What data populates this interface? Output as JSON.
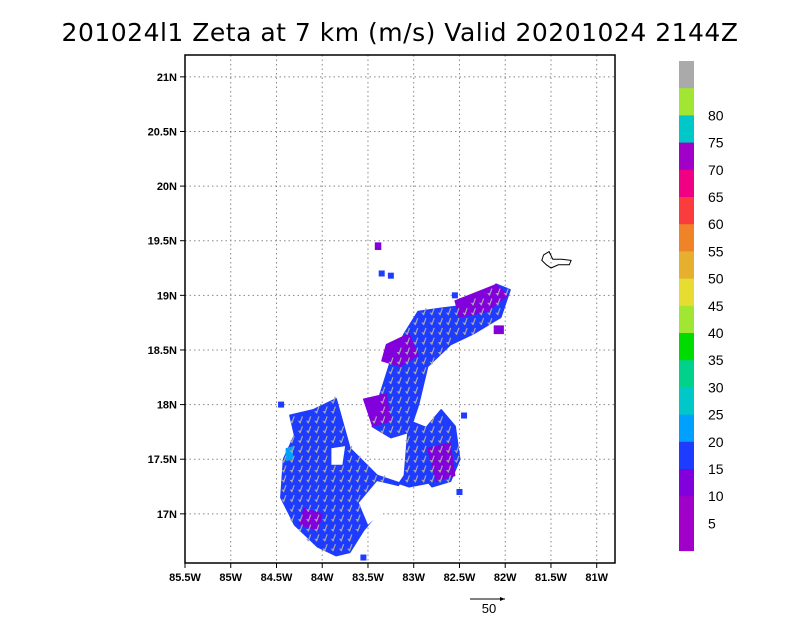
{
  "chart_data": {
    "type": "heatmap",
    "title": "201024l1  Zeta at 7 km (m/s) Valid 20201024 2144Z",
    "xlim": [
      -85.5,
      -80.8
    ],
    "ylim": [
      16.55,
      21.2
    ],
    "x_ticks": [
      {
        "value": -85.5,
        "label": "85.5W"
      },
      {
        "value": -85.0,
        "label": "85W"
      },
      {
        "value": -84.5,
        "label": "84.5W"
      },
      {
        "value": -84.0,
        "label": "84W"
      },
      {
        "value": -83.5,
        "label": "83.5W"
      },
      {
        "value": -83.0,
        "label": "83W"
      },
      {
        "value": -82.5,
        "label": "82.5W"
      },
      {
        "value": -82.0,
        "label": "82W"
      },
      {
        "value": -81.5,
        "label": "81.5W"
      },
      {
        "value": -81.0,
        "label": "81W"
      }
    ],
    "y_ticks": [
      {
        "value": 17.0,
        "label": "17N"
      },
      {
        "value": 17.5,
        "label": "17.5N"
      },
      {
        "value": 18.0,
        "label": "18N"
      },
      {
        "value": 18.5,
        "label": "18.5N"
      },
      {
        "value": 19.0,
        "label": "19N"
      },
      {
        "value": 19.5,
        "label": "19.5N"
      },
      {
        "value": 20.0,
        "label": "20N"
      },
      {
        "value": 20.5,
        "label": "20.5N"
      },
      {
        "value": 21.0,
        "label": "21N"
      }
    ],
    "grid": true,
    "colorbar": {
      "placement": "right",
      "levels": [
        {
          "label": "",
          "color": "#a000c8"
        },
        {
          "label": "5",
          "color": "#a000c8"
        },
        {
          "label": "10",
          "color": "#8200dc"
        },
        {
          "label": "15",
          "color": "#1e3cff"
        },
        {
          "label": "20",
          "color": "#00a0ff"
        },
        {
          "label": "25",
          "color": "#00c8c8"
        },
        {
          "label": "30",
          "color": "#00d28c"
        },
        {
          "label": "35",
          "color": "#00dc00"
        },
        {
          "label": "40",
          "color": "#a0e632"
        },
        {
          "label": "45",
          "color": "#e6dc32"
        },
        {
          "label": "50",
          "color": "#e6af2d"
        },
        {
          "label": "55",
          "color": "#f08228"
        },
        {
          "label": "60",
          "color": "#fa3c3c"
        },
        {
          "label": "65",
          "color": "#f00082"
        },
        {
          "label": "70",
          "color": "#a000c8"
        },
        {
          "label": "75",
          "color": "#00c8c8"
        },
        {
          "label": "80",
          "color": "#a0e632"
        },
        {
          "label": "",
          "color": "#aaaaaa"
        }
      ]
    },
    "vector_scale": {
      "label": "50"
    },
    "regions": [
      {
        "name": "southwest-blob",
        "color": "#1e3cff",
        "polygon": [
          [
            -84.35,
            17.9
          ],
          [
            -84.1,
            17.95
          ],
          [
            -83.85,
            18.05
          ],
          [
            -83.7,
            17.6
          ],
          [
            -83.4,
            17.35
          ],
          [
            -83.05,
            17.25
          ],
          [
            -82.75,
            17.3
          ],
          [
            -82.6,
            17.55
          ],
          [
            -82.75,
            17.75
          ],
          [
            -83.05,
            17.85
          ],
          [
            -83.1,
            17.35
          ],
          [
            -83.3,
            17.1
          ],
          [
            -83.55,
            16.85
          ],
          [
            -83.7,
            16.65
          ],
          [
            -83.85,
            16.62
          ],
          [
            -84.05,
            16.7
          ],
          [
            -84.3,
            16.9
          ],
          [
            -84.45,
            17.15
          ],
          [
            -84.42,
            17.5
          ],
          [
            -84.3,
            17.72
          ]
        ]
      },
      {
        "name": "northeast-band",
        "color": "#1e3cff",
        "polygon": [
          [
            -83.4,
            18.0
          ],
          [
            -83.25,
            18.4
          ],
          [
            -83.1,
            18.65
          ],
          [
            -82.95,
            18.85
          ],
          [
            -82.7,
            18.88
          ],
          [
            -82.5,
            18.9
          ],
          [
            -82.3,
            18.95
          ],
          [
            -82.1,
            19.1
          ],
          [
            -81.95,
            19.05
          ],
          [
            -82.05,
            18.8
          ],
          [
            -82.35,
            18.65
          ],
          [
            -82.6,
            18.55
          ],
          [
            -82.85,
            18.35
          ],
          [
            -82.95,
            18.0
          ],
          [
            -83.05,
            17.75
          ],
          [
            -83.25,
            17.7
          ],
          [
            -83.45,
            17.8
          ]
        ]
      },
      {
        "name": "east-patch",
        "color": "#1e3cff",
        "polygon": [
          [
            -82.9,
            17.75
          ],
          [
            -82.7,
            17.95
          ],
          [
            -82.55,
            17.8
          ],
          [
            -82.5,
            17.5
          ],
          [
            -82.6,
            17.3
          ],
          [
            -82.8,
            17.25
          ],
          [
            -82.95,
            17.4
          ]
        ]
      }
    ],
    "purple_patches": [
      {
        "color": "#8200dc",
        "polygon": [
          [
            -83.3,
            18.55
          ],
          [
            -83.05,
            18.65
          ],
          [
            -82.95,
            18.45
          ],
          [
            -83.15,
            18.35
          ],
          [
            -83.35,
            18.4
          ]
        ]
      },
      {
        "color": "#8200dc",
        "polygon": [
          [
            -82.55,
            18.95
          ],
          [
            -82.1,
            19.1
          ],
          [
            -81.97,
            19.0
          ],
          [
            -82.2,
            18.85
          ],
          [
            -82.5,
            18.8
          ]
        ]
      },
      {
        "color": "#8200dc",
        "polygon": [
          [
            -83.55,
            18.05
          ],
          [
            -83.3,
            18.1
          ],
          [
            -83.25,
            17.85
          ],
          [
            -83.45,
            17.8
          ]
        ]
      },
      {
        "color": "#8200dc",
        "polygon": [
          [
            -82.85,
            17.6
          ],
          [
            -82.6,
            17.65
          ],
          [
            -82.55,
            17.35
          ],
          [
            -82.75,
            17.3
          ]
        ]
      },
      {
        "color": "#8200dc",
        "polygon": [
          [
            -84.2,
            17.05
          ],
          [
            -84.0,
            17.0
          ],
          [
            -84.05,
            16.85
          ],
          [
            -84.25,
            16.9
          ]
        ]
      },
      {
        "color": "#8200dc",
        "polygon": [
          [
            -83.42,
            19.48
          ],
          [
            -83.36,
            19.48
          ],
          [
            -83.36,
            19.42
          ],
          [
            -83.42,
            19.42
          ]
        ]
      },
      {
        "color": "#8200dc",
        "polygon": [
          [
            -82.12,
            18.72
          ],
          [
            -82.02,
            18.72
          ],
          [
            -82.02,
            18.65
          ],
          [
            -82.12,
            18.65
          ]
        ]
      }
    ],
    "cyan_patches": [
      {
        "color": "#00a0ff",
        "polygon": [
          [
            -84.4,
            17.6
          ],
          [
            -84.32,
            17.62
          ],
          [
            -84.32,
            17.5
          ],
          [
            -84.4,
            17.48
          ]
        ]
      }
    ],
    "holes": [
      {
        "polygon": [
          [
            -83.6,
            17.1
          ],
          [
            -83.4,
            17.3
          ],
          [
            -83.15,
            17.25
          ],
          [
            -83.3,
            17.05
          ],
          [
            -83.5,
            16.9
          ]
        ]
      },
      {
        "polygon": [
          [
            -83.9,
            17.6
          ],
          [
            -83.75,
            17.62
          ],
          [
            -83.78,
            17.45
          ],
          [
            -83.9,
            17.45
          ]
        ]
      }
    ],
    "island_outline": [
      [
        -81.58,
        19.37
      ],
      [
        -81.52,
        19.4
      ],
      [
        -81.48,
        19.33
      ],
      [
        -81.38,
        19.33
      ],
      [
        -81.28,
        19.32
      ],
      [
        -81.3,
        19.28
      ],
      [
        -81.42,
        19.28
      ],
      [
        -81.5,
        19.25
      ],
      [
        -81.55,
        19.28
      ],
      [
        -81.6,
        19.32
      ]
    ]
  }
}
